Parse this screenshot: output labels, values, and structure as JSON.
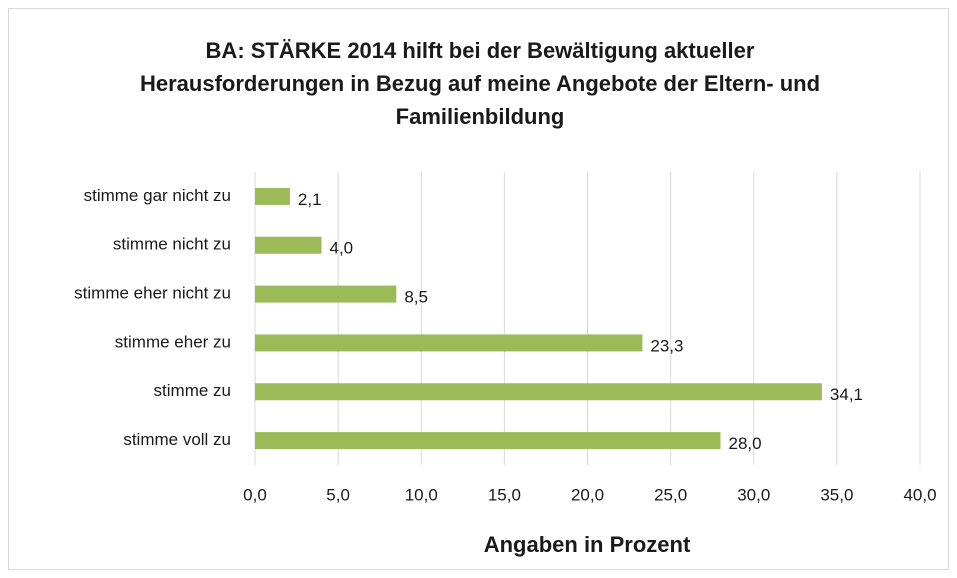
{
  "chart_data": {
    "type": "hbar",
    "title": "BA: STÄRKE 2014 hilft bei der Bewältigung aktueller Herausforderungen in Bezug auf meine Angebote der Eltern- und Familienbildung",
    "x_label": "Angaben in Prozent",
    "categories": [
      "stimme gar nicht zu",
      "stimme nicht zu",
      "stimme eher nicht zu",
      "stimme eher zu",
      "stimme zu",
      "stimme voll zu"
    ],
    "values": [
      2.1,
      4.0,
      8.5,
      23.3,
      34.1,
      28.0
    ],
    "value_labels": [
      "2,1",
      "4,0",
      "8,5",
      "23,3",
      "34,1",
      "28,0"
    ],
    "color": "#9bbb59",
    "xlim": [
      0,
      40
    ],
    "xticks": [
      {
        "value": 0,
        "label": "0,0"
      },
      {
        "value": 5,
        "label": "5,0"
      },
      {
        "value": 10,
        "label": "10,0"
      },
      {
        "value": 15,
        "label": "15,0"
      },
      {
        "value": 20,
        "label": "20,0"
      },
      {
        "value": 25,
        "label": "25,0"
      },
      {
        "value": 30,
        "label": "30,0"
      },
      {
        "value": 35,
        "label": "35,0"
      },
      {
        "value": 40,
        "label": "40,0"
      }
    ],
    "grid": true
  }
}
